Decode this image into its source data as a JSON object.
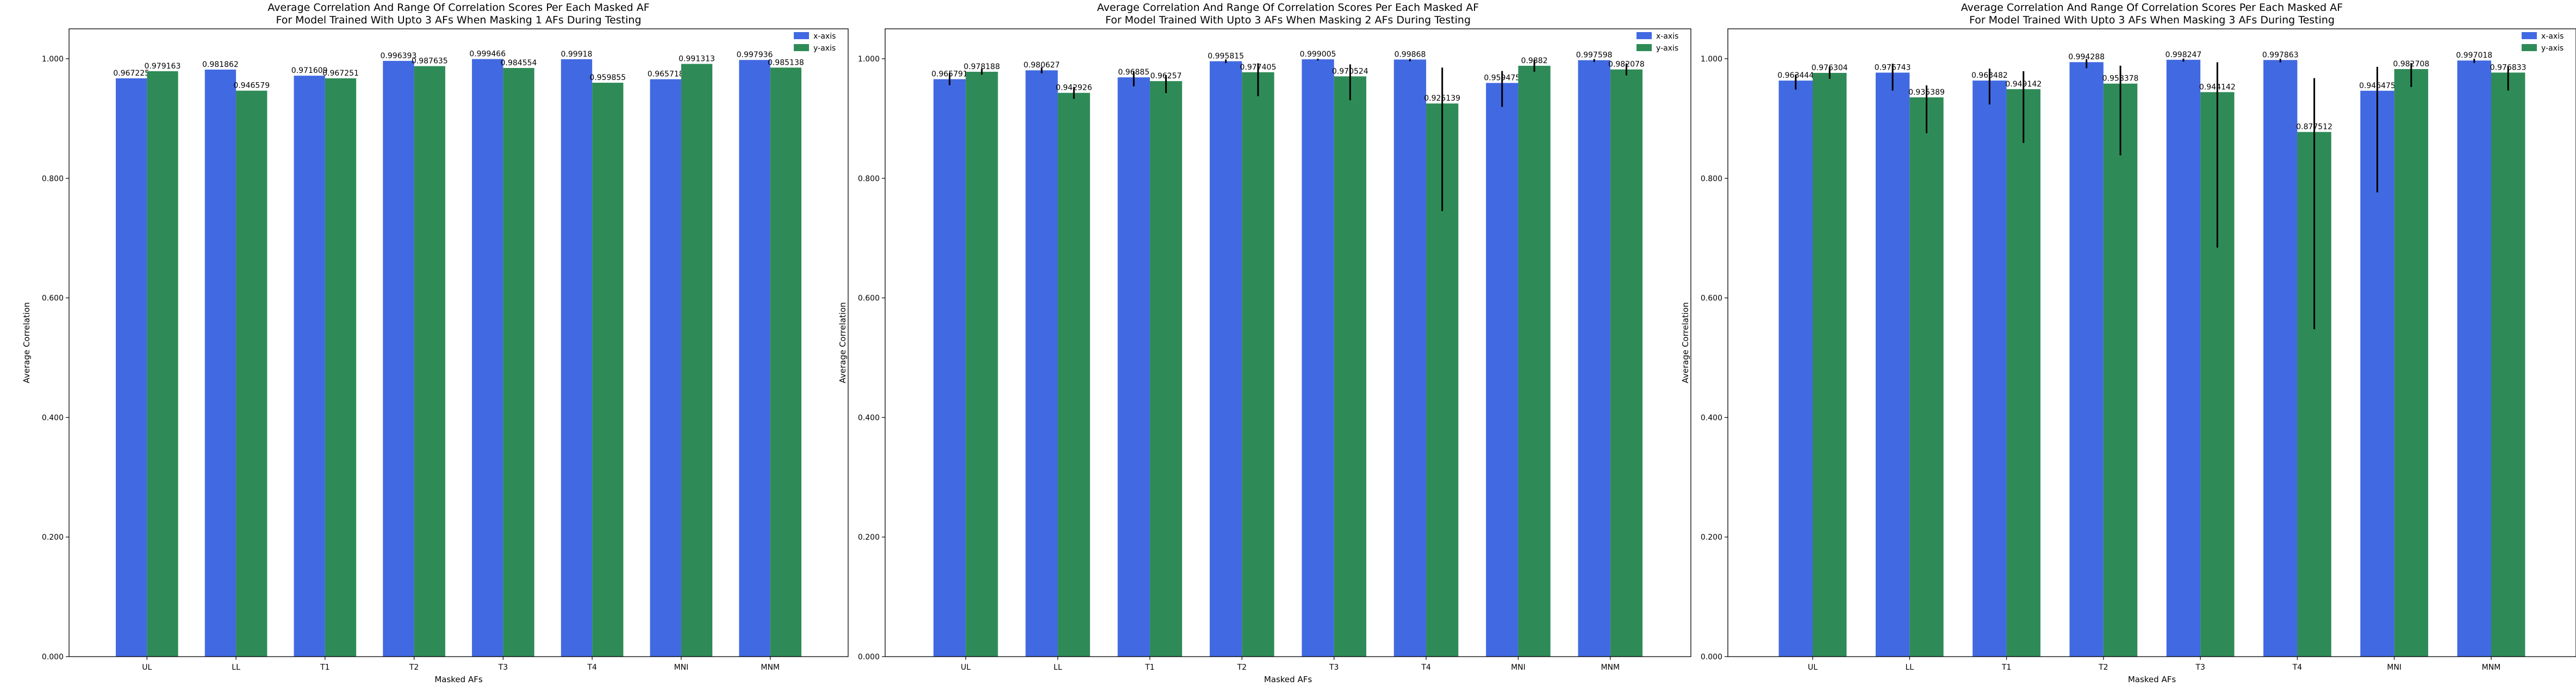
{
  "colors": {
    "x": "#4169e1",
    "y": "#2e8b57",
    "axis": "#000000",
    "errbar": "#000000"
  },
  "chart_data": [
    {
      "type": "bar",
      "title": "Average Correlation And Range Of Correlation Scores Per Each Masked AF",
      "subtitle": "For Model Trained With Upto 3 AFs When Masking 1 AFs During Testing",
      "xlabel": "Masked AFs",
      "ylabel": "Average Correlation",
      "ylim": [
        0,
        1.05
      ],
      "yticks": [
        0,
        0.2,
        0.4,
        0.6,
        0.8,
        1.0
      ],
      "yticklabels": [
        "0.000",
        "0.200",
        "0.400",
        "0.600",
        "0.800",
        "1.000"
      ],
      "legend_position": "top-right",
      "grid": false,
      "categories": [
        "UL",
        "LL",
        "T1",
        "T2",
        "T3",
        "T4",
        "MNI",
        "MNM"
      ],
      "series": [
        {
          "name": "x-axis",
          "values": [
            0.967225,
            0.981862,
            0.971609,
            0.996393,
            0.999466,
            0.99918,
            0.965718,
            0.997936
          ],
          "labels": [
            "0.967225",
            "0.981862",
            "0.971609",
            "0.996393",
            "0.999466",
            "0.99918",
            "0.965718",
            "0.997936"
          ],
          "err_low": [
            0,
            0,
            0,
            0,
            0,
            0,
            0,
            0
          ],
          "err_high": [
            0,
            0,
            0,
            0,
            0,
            0,
            0,
            0
          ]
        },
        {
          "name": "y-axis",
          "values": [
            0.979163,
            0.946579,
            0.967251,
            0.987635,
            0.984554,
            0.959855,
            0.991313,
            0.985138
          ],
          "labels": [
            "0.979163",
            "0.946579",
            "0.967251",
            "0.987635",
            "0.984554",
            "0.959855",
            "0.991313",
            "0.985138"
          ],
          "err_low": [
            0,
            0,
            0,
            0,
            0,
            0,
            0,
            0
          ],
          "err_high": [
            0,
            0,
            0,
            0,
            0,
            0,
            0,
            0
          ]
        }
      ]
    },
    {
      "type": "bar",
      "title": "Average Correlation And Range Of Correlation Scores Per Each Masked AF",
      "subtitle": "For Model Trained With Upto 3 AFs When Masking 2 AFs During Testing",
      "xlabel": "Masked AFs",
      "ylabel": "Average Correlation",
      "ylim": [
        0,
        1.05
      ],
      "yticks": [
        0,
        0.2,
        0.4,
        0.6,
        0.8,
        1.0
      ],
      "yticklabels": [
        "0.000",
        "0.200",
        "0.400",
        "0.600",
        "0.800",
        "1.000"
      ],
      "legend_position": "top-right",
      "grid": false,
      "categories": [
        "UL",
        "LL",
        "T1",
        "T2",
        "T3",
        "T4",
        "MNI",
        "MNM"
      ],
      "series": [
        {
          "name": "x-axis",
          "values": [
            0.965791,
            0.980627,
            0.96885,
            0.995815,
            0.999005,
            0.99868,
            0.959475,
            0.997598
          ],
          "labels": [
            "0.965791",
            "0.980627",
            "0.96885",
            "0.995815",
            "0.999005",
            "0.99868",
            "0.959475",
            "0.997598"
          ],
          "err_low": [
            0.01,
            0.005,
            0.015,
            0.003,
            0.002,
            0.003,
            0.04,
            0.003
          ],
          "err_high": [
            0.01,
            0.005,
            0.01,
            0.003,
            0.001,
            0.001,
            0.02,
            0.002
          ]
        },
        {
          "name": "y-axis",
          "values": [
            0.978188,
            0.942926,
            0.96257,
            0.977405,
            0.970524,
            0.925139,
            0.9882,
            0.982078
          ],
          "labels": [
            "0.978188",
            "0.942926",
            "0.96257",
            "0.977405",
            "0.970524",
            "0.925139",
            "0.9882",
            "0.982078"
          ],
          "err_low": [
            0.005,
            0.01,
            0.02,
            0.04,
            0.04,
            0.18,
            0.01,
            0.01
          ],
          "err_high": [
            0.005,
            0.01,
            0.01,
            0.015,
            0.02,
            0.06,
            0.01,
            0.01
          ]
        }
      ]
    },
    {
      "type": "bar",
      "title": "Average Correlation And Range Of Correlation Scores Per Each Masked AF",
      "subtitle": "For Model Trained With Upto 3 AFs When Masking 3 AFs During Testing",
      "xlabel": "Masked AFs",
      "ylabel": "Average Correlation",
      "ylim": [
        0,
        1.05
      ],
      "yticks": [
        0,
        0.2,
        0.4,
        0.6,
        0.8,
        1.0
      ],
      "yticklabels": [
        "0.000",
        "0.200",
        "0.400",
        "0.600",
        "0.800",
        "1.000"
      ],
      "legend_position": "top-right",
      "grid": false,
      "categories": [
        "UL",
        "LL",
        "T1",
        "T2",
        "T3",
        "T4",
        "MNI",
        "MNM"
      ],
      "series": [
        {
          "name": "x-axis",
          "values": [
            0.963444,
            0.976743,
            0.963482,
            0.994288,
            0.998247,
            0.997863,
            0.946475,
            0.997018
          ],
          "labels": [
            "0.963444",
            "0.976743",
            "0.963482",
            "0.994288",
            "0.998247",
            "0.997863",
            "0.946475",
            "0.997018"
          ],
          "err_low": [
            0.015,
            0.03,
            0.04,
            0.01,
            0.003,
            0.004,
            0.17,
            0.004
          ],
          "err_high": [
            0.01,
            0.015,
            0.02,
            0.005,
            0.002,
            0.002,
            0.04,
            0.003
          ]
        },
        {
          "name": "y-axis",
          "values": [
            0.976304,
            0.935389,
            0.949142,
            0.958378,
            0.944142,
            0.877512,
            0.982708,
            0.976833
          ],
          "labels": [
            "0.976304",
            "0.935389",
            "0.949142",
            "0.958378",
            "0.944142",
            "0.877512",
            "0.982708",
            "0.976833"
          ],
          "err_low": [
            0.01,
            0.06,
            0.09,
            0.12,
            0.26,
            0.33,
            0.03,
            0.03
          ],
          "err_high": [
            0.01,
            0.02,
            0.03,
            0.03,
            0.05,
            0.09,
            0.01,
            0.01
          ]
        }
      ]
    }
  ]
}
